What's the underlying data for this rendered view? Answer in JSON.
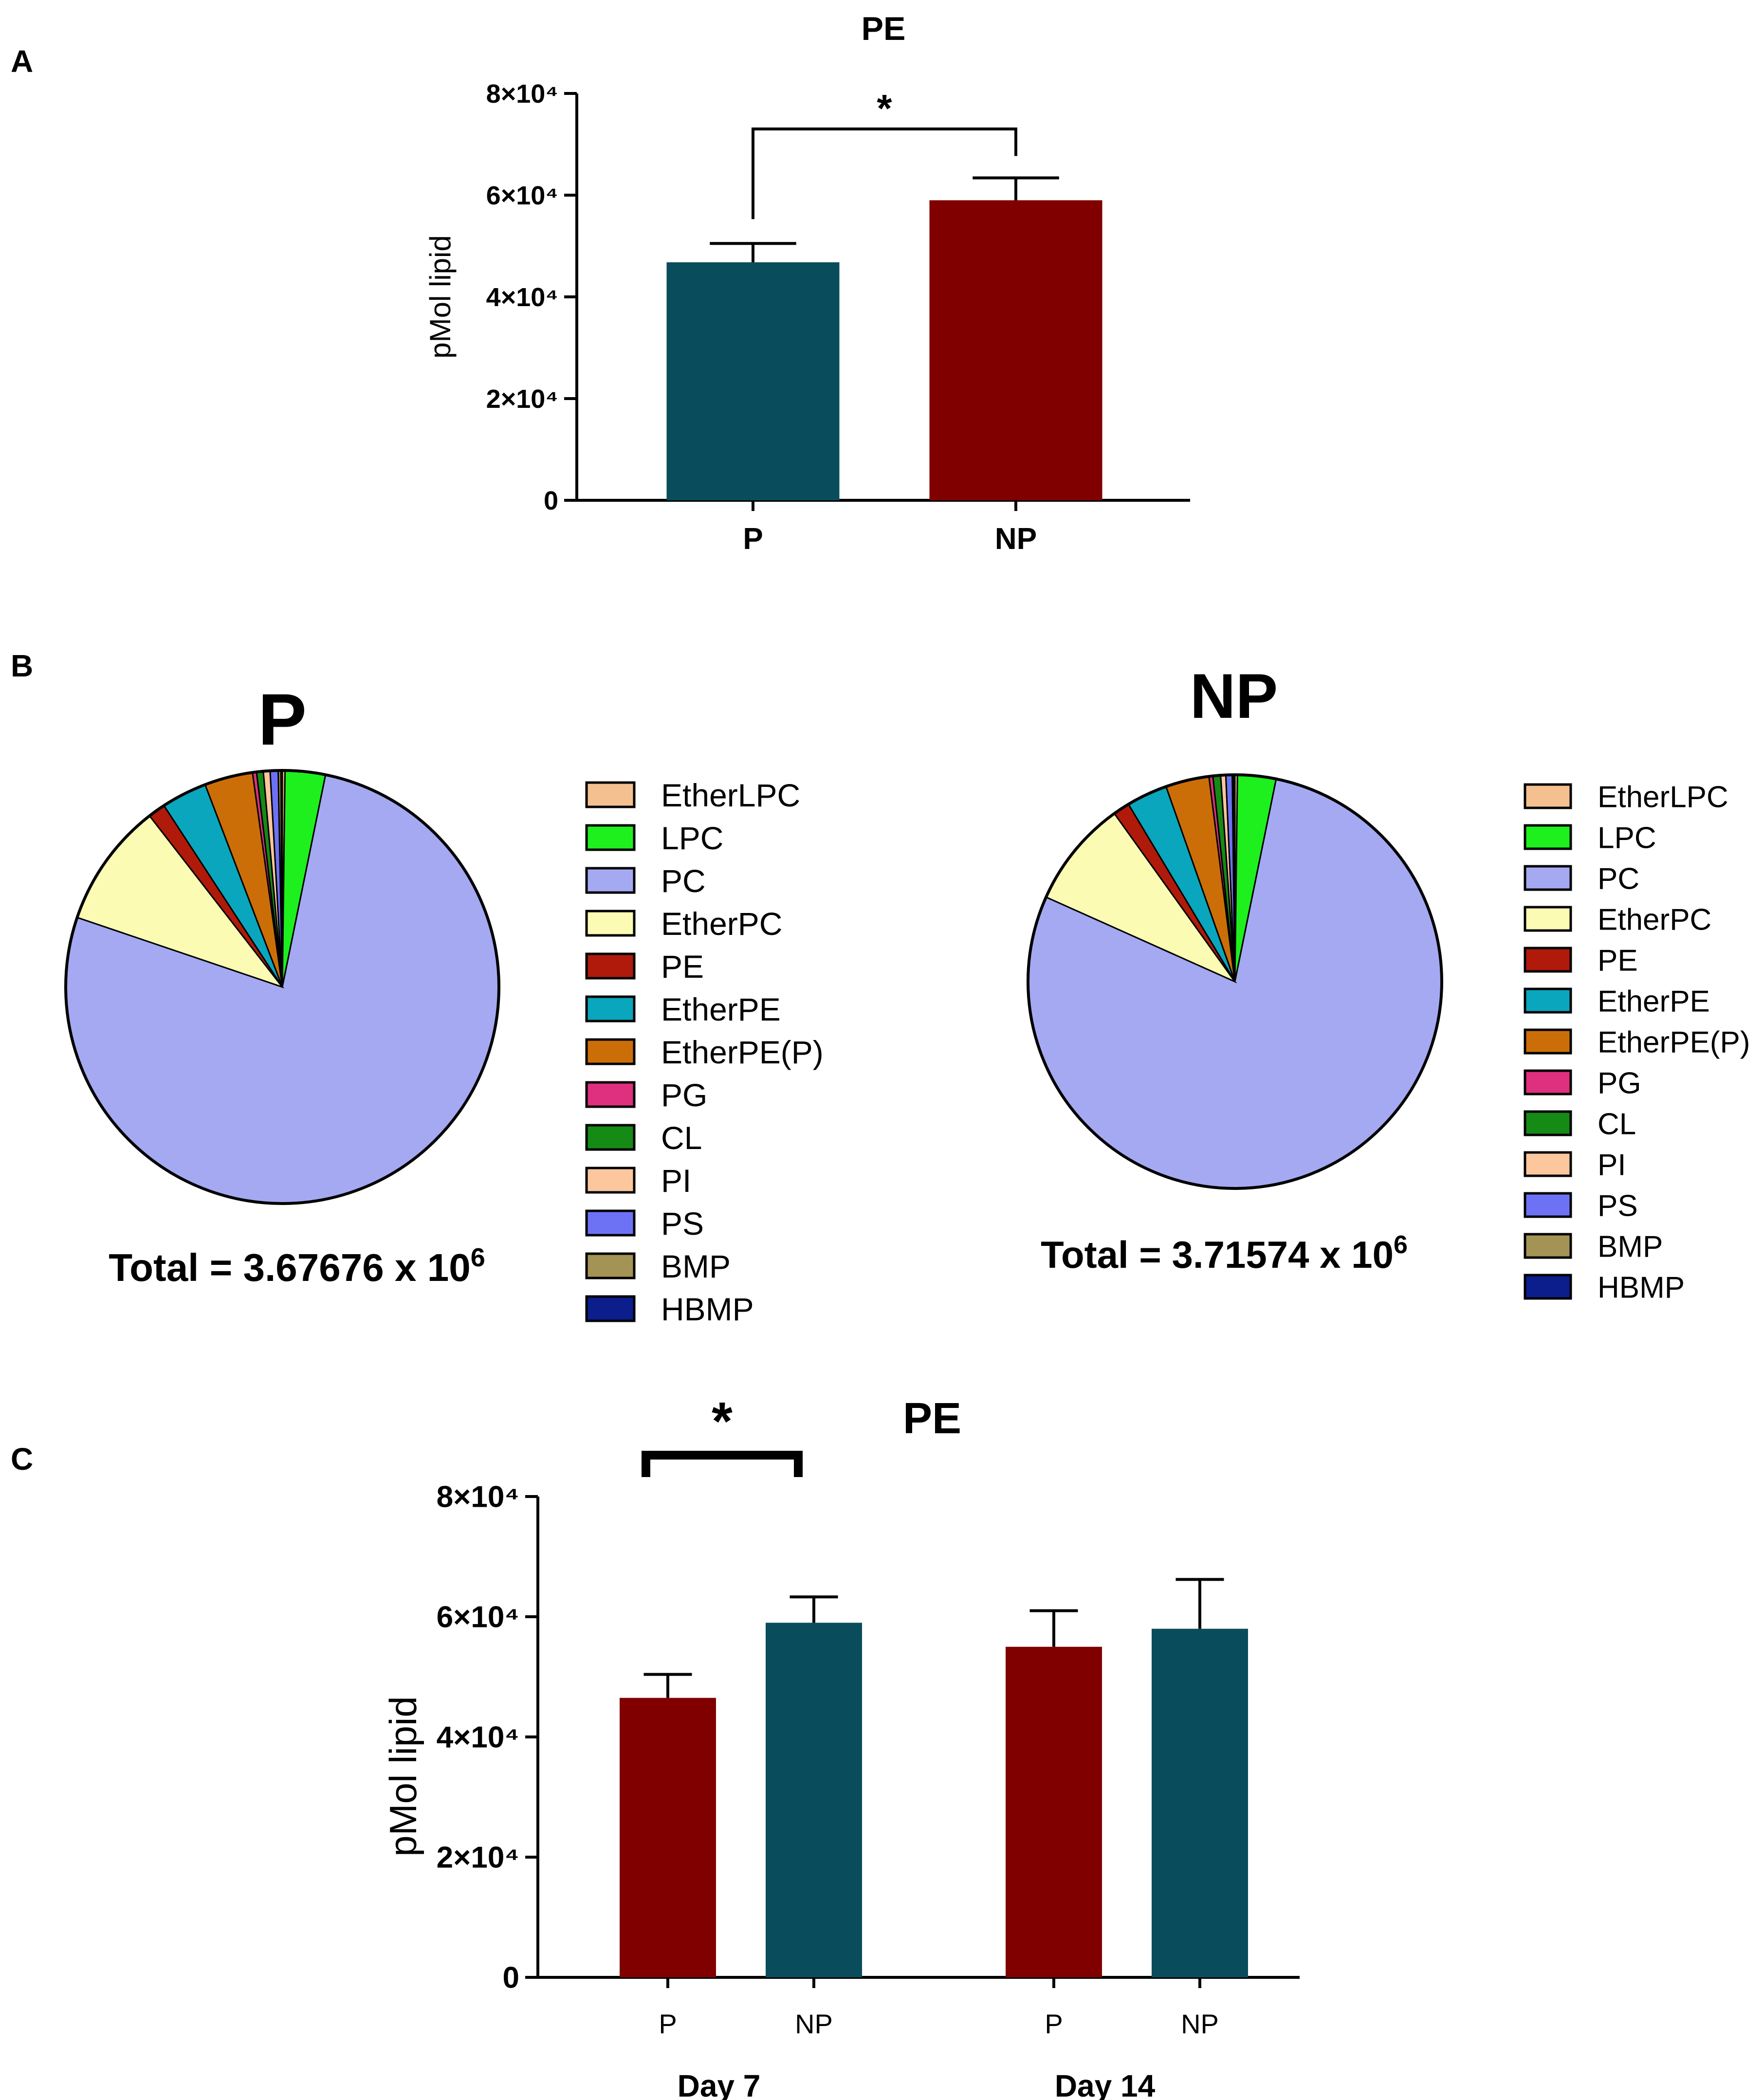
{
  "panels": {
    "a": {
      "letter": "A"
    },
    "b": {
      "letter": "B"
    },
    "c": {
      "letter": "C"
    }
  },
  "colors": {
    "teal": "#094d5c",
    "maroon": "#800000"
  },
  "chart_data": [
    {
      "id": "A",
      "type": "bar",
      "title": "PE",
      "ylabel": "pMol lipid",
      "xlabel": "",
      "ylim": [
        0,
        80000
      ],
      "yticks": [
        {
          "value": 0,
          "label": "0"
        },
        {
          "value": 20000,
          "label": "2×10⁴"
        },
        {
          "value": 40000,
          "label": "4×10⁴"
        },
        {
          "value": 60000,
          "label": "6×10⁴"
        },
        {
          "value": 80000,
          "label": "8×10⁴"
        }
      ],
      "categories": [
        "P",
        "NP"
      ],
      "values": [
        46800,
        59000
      ],
      "errors": [
        3700,
        4400
      ],
      "bar_colors": [
        "#094d5c",
        "#800000"
      ],
      "significance": {
        "pair": [
          0,
          1
        ],
        "label": "*"
      }
    },
    {
      "id": "B-P",
      "type": "pie",
      "title": "P",
      "total_label": "Total = 3.67676 x 10",
      "total_exponent": "6",
      "slices": [
        {
          "label": "EtherLPC",
          "value": 0.2,
          "color": "#f5c08f"
        },
        {
          "label": "LPC",
          "value": 3.0,
          "color": "#1ef01e"
        },
        {
          "label": "PC",
          "value": 77.0,
          "color": "#a4a9f2"
        },
        {
          "label": "EtherPC",
          "value": 9.3,
          "color": "#fbfbb4"
        },
        {
          "label": "PE",
          "value": 1.3,
          "color": "#b01a0a"
        },
        {
          "label": "EtherPE",
          "value": 3.4,
          "color": "#0aa6bd"
        },
        {
          "label": "EtherPE(P)",
          "value": 3.6,
          "color": "#cc6e08"
        },
        {
          "label": "PG",
          "value": 0.3,
          "color": "#df2f7f"
        },
        {
          "label": "CL",
          "value": 0.5,
          "color": "#158a15"
        },
        {
          "label": "PI",
          "value": 0.5,
          "color": "#fcc79c"
        },
        {
          "label": "PS",
          "value": 0.6,
          "color": "#6d72f5"
        },
        {
          "label": "BMP",
          "value": 0.2,
          "color": "#a39455"
        },
        {
          "label": "HBMP",
          "value": 0.1,
          "color": "#0b1e8c"
        }
      ]
    },
    {
      "id": "B-NP",
      "type": "pie",
      "title": "NP",
      "total_label": "Total = 3.71574 x 10",
      "total_exponent": "6",
      "slices": [
        {
          "label": "EtherLPC",
          "value": 0.2,
          "color": "#f5c08f"
        },
        {
          "label": "LPC",
          "value": 3.0,
          "color": "#1ef01e"
        },
        {
          "label": "PC",
          "value": 78.5,
          "color": "#a4a9f2"
        },
        {
          "label": "EtherPC",
          "value": 8.4,
          "color": "#fbfbb4"
        },
        {
          "label": "PE",
          "value": 1.3,
          "color": "#b01a0a"
        },
        {
          "label": "EtherPE",
          "value": 3.2,
          "color": "#0aa6bd"
        },
        {
          "label": "EtherPE(P)",
          "value": 3.4,
          "color": "#cc6e08"
        },
        {
          "label": "PG",
          "value": 0.3,
          "color": "#df2f7f"
        },
        {
          "label": "CL",
          "value": 0.6,
          "color": "#158a15"
        },
        {
          "label": "PI",
          "value": 0.4,
          "color": "#fcc79c"
        },
        {
          "label": "PS",
          "value": 0.5,
          "color": "#6d72f5"
        },
        {
          "label": "BMP",
          "value": 0.1,
          "color": "#a39455"
        },
        {
          "label": "HBMP",
          "value": 0.1,
          "color": "#0b1e8c"
        }
      ]
    },
    {
      "id": "C",
      "type": "bar",
      "title": "PE",
      "ylabel": "pMol lipid",
      "xlabel": "",
      "ylim": [
        0,
        80000
      ],
      "yticks": [
        {
          "value": 0,
          "label": "0"
        },
        {
          "value": 20000,
          "label": "2×10⁴"
        },
        {
          "value": 40000,
          "label": "4×10⁴"
        },
        {
          "value": 60000,
          "label": "6×10⁴"
        },
        {
          "value": 80000,
          "label": "8×10⁴"
        }
      ],
      "groups": [
        {
          "name": "Day 7",
          "categories": [
            "P",
            "NP"
          ],
          "values": [
            46500,
            59000
          ],
          "errors": [
            3900,
            4300
          ],
          "bar_colors": [
            "#800000",
            "#094d5c"
          ]
        },
        {
          "name": "Day 14",
          "categories": [
            "P",
            "NP"
          ],
          "values": [
            55000,
            58000
          ],
          "errors": [
            6000,
            8200
          ],
          "bar_colors": [
            "#800000",
            "#094d5c"
          ]
        }
      ],
      "significance": {
        "group": 0,
        "label": "*"
      }
    }
  ]
}
